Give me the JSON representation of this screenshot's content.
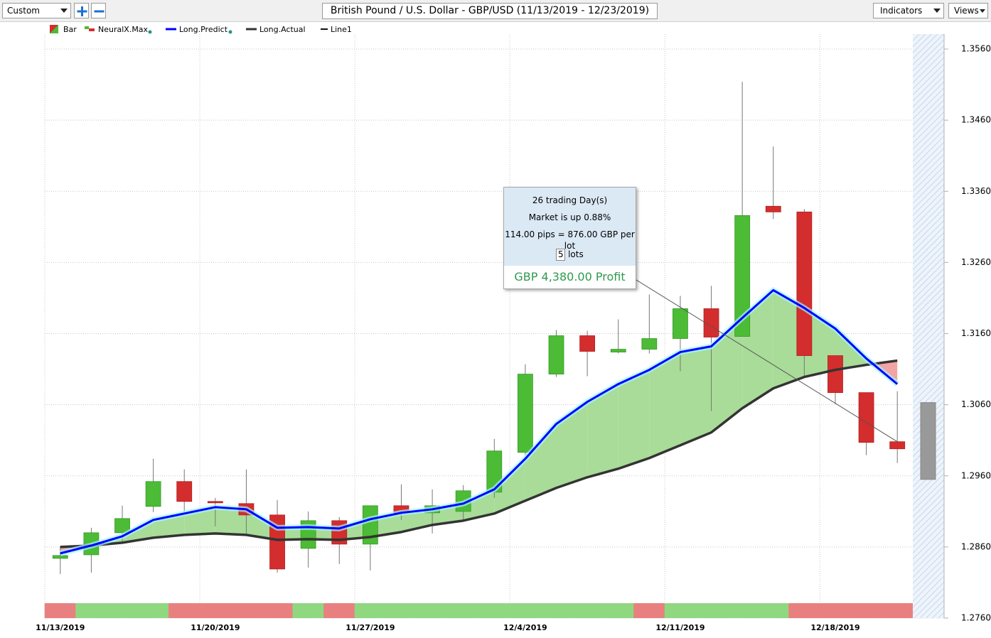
{
  "toolbar": {
    "preset": "Custom",
    "indicators": "Indicators",
    "views": "Views"
  },
  "tooltip": {
    "days": "26 trading Day(s)",
    "market": "Market is up 0.88%",
    "pips": "114.00 pips = 876.00 GBP per lot",
    "lots_input": "5",
    "lots_label": "lots",
    "profit": "GBP 4,380.00 Profit"
  },
  "chart_data": {
    "type": "candlestick",
    "title": "British Pound / U.S. Dollar - GBP/USD (11/13/2019 - 12/23/2019)",
    "categories": [
      "11/13/2019",
      null,
      null,
      null,
      null,
      "11/20/2019",
      null,
      null,
      null,
      null,
      "11/27/2019",
      null,
      null,
      null,
      null,
      "12/4/2019",
      null,
      null,
      null,
      null,
      "12/11/2019",
      null,
      null,
      null,
      null,
      "12/18/2019",
      null,
      null
    ],
    "ohlc": {
      "name": "Bar",
      "up_color": "#4cbb35",
      "down_color": "#d42d2d",
      "open": [
        1.2844,
        1.2849,
        1.288,
        1.2917,
        1.2952,
        1.2924,
        1.2921,
        1.2905,
        1.2858,
        1.2897,
        1.2864,
        1.2918,
        1.2908,
        1.291,
        1.2937,
        1.2993,
        1.3103,
        1.3157,
        1.3134,
        1.3138,
        1.3153,
        1.3195,
        1.3156,
        1.3339,
        1.3331,
        1.3129,
        1.3077,
        1.3008
      ],
      "high": [
        1.2861,
        1.2887,
        1.2918,
        1.2984,
        1.2969,
        1.2929,
        1.2969,
        1.2926,
        1.291,
        1.2902,
        1.2918,
        1.2948,
        1.2941,
        1.2947,
        1.3012,
        1.3117,
        1.3165,
        1.3164,
        1.318,
        1.3215,
        1.3213,
        1.3227,
        1.3514,
        1.3423,
        1.3335,
        1.3129,
        1.3077,
        1.3079
      ],
      "low": [
        1.2822,
        1.2824,
        1.2866,
        1.2909,
        1.2909,
        1.2889,
        1.2879,
        1.2824,
        1.2831,
        1.2836,
        1.2827,
        1.2898,
        1.2879,
        1.2896,
        1.2929,
        1.2989,
        1.3099,
        1.31,
        1.3132,
        1.3132,
        1.3107,
        1.3051,
        1.3156,
        1.3321,
        1.3099,
        1.3061,
        1.2989,
        1.2978
      ],
      "close": [
        1.2848,
        1.288,
        1.29,
        1.2952,
        1.2924,
        1.2922,
        1.2905,
        1.2829,
        1.2897,
        1.2864,
        1.2918,
        1.2908,
        1.2918,
        1.2939,
        1.2995,
        1.3103,
        1.3157,
        1.3135,
        1.3138,
        1.3153,
        1.3195,
        1.3155,
        1.3326,
        1.3331,
        1.3129,
        1.3077,
        1.3007,
        1.2998
      ]
    },
    "signal": {
      "name": "NeuralX.Max",
      "colors": [
        "#e88080",
        "#8fd880",
        "#8fd880",
        "#8fd880",
        "#e88080",
        "#e88080",
        "#e88080",
        "#e88080",
        "#8fd880",
        "#e88080",
        "#8fd880",
        "#8fd880",
        "#8fd880",
        "#8fd880",
        "#8fd880",
        "#8fd880",
        "#8fd880",
        "#8fd880",
        "#8fd880",
        "#e88080",
        "#8fd880",
        "#8fd880",
        "#8fd880",
        "#8fd880",
        "#e88080",
        "#e88080",
        "#e88080",
        "#e88080"
      ]
    },
    "series": [
      {
        "name": "Long.Predict",
        "color": "#0000ff",
        "values": [
          1.2851,
          1.2862,
          1.2875,
          1.2898,
          1.2907,
          1.2916,
          1.2913,
          1.2887,
          1.2888,
          1.2886,
          1.2899,
          1.2908,
          1.2913,
          1.2921,
          1.2941,
          1.2984,
          1.3033,
          1.3064,
          1.3089,
          1.3109,
          1.3134,
          1.3142,
          1.3182,
          1.3221,
          1.3196,
          1.3167,
          1.3125,
          1.3089
        ]
      },
      {
        "name": "Long.Actual",
        "color": "#333333",
        "values": [
          1.286,
          1.2862,
          1.2866,
          1.2873,
          1.2877,
          1.2879,
          1.2877,
          1.287,
          1.2871,
          1.287,
          1.2874,
          1.2881,
          1.2891,
          1.2897,
          1.2907,
          1.2925,
          1.2943,
          1.2958,
          1.297,
          1.2985,
          1.3003,
          1.3021,
          1.3055,
          1.3083,
          1.3099,
          1.3109,
          1.3116,
          1.3122
        ]
      }
    ],
    "line1": {
      "name": "Line1",
      "color": "#555555",
      "x": [
        18,
        27
      ],
      "values": [
        1.3251,
        1.3008
      ]
    },
    "range_marker": {
      "high": 1.3063,
      "low": 1.2955,
      "color": "#999999"
    },
    "fill_up_color": "#a8dc98",
    "fill_down_color": "#f0a4a4",
    "ylim": [
      1.276,
      1.3581
    ],
    "yticks": [
      {
        "value": 1.276,
        "label": "1.2760"
      },
      {
        "value": 1.286,
        "label": "1.2860"
      },
      {
        "value": 1.296,
        "label": "1.2960"
      },
      {
        "value": 1.306,
        "label": "1.3060"
      },
      {
        "value": 1.316,
        "label": "1.3160"
      },
      {
        "value": 1.326,
        "label": "1.3260"
      },
      {
        "value": 1.336,
        "label": "1.3360"
      },
      {
        "value": 1.346,
        "label": "1.3460"
      },
      {
        "value": 1.356,
        "label": "1.3560"
      }
    ],
    "grid": true
  }
}
